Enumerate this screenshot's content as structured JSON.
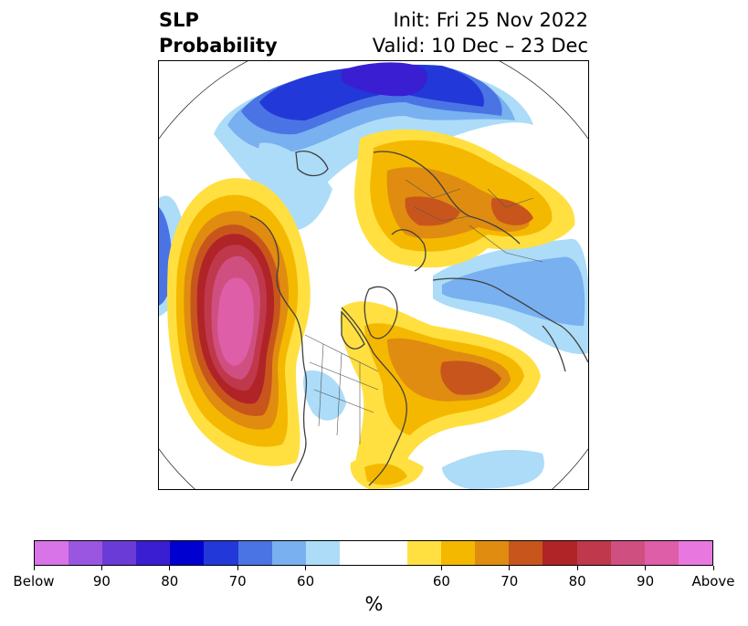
{
  "title": {
    "left_line1": "SLP",
    "left_line2": "Probability",
    "right_line1": "Init: Fri 25 Nov 2022",
    "right_line2": "Valid: 10 Dec – 23 Dec"
  },
  "colorbar": {
    "colors": [
      "#d873e8",
      "#9a56e0",
      "#6b3bd8",
      "#3a1ed2",
      "#0000d0",
      "#2238d8",
      "#4a74e4",
      "#78b0f0",
      "#acdcf8",
      "#ffffff",
      "#ffffff",
      "#ffe040",
      "#f5b800",
      "#e08c10",
      "#c8561c",
      "#b02428",
      "#c0384c",
      "#cf5080",
      "#de5ea8",
      "#e878e0"
    ],
    "tick_labels": [
      "Below",
      "90",
      "80",
      "70",
      "60",
      "60",
      "70",
      "80",
      "90",
      "Above"
    ],
    "unit": "%"
  },
  "map": {
    "projection": "north-polar-stereographic",
    "palette": {
      "blue_light": "#acdcf8",
      "blue_2": "#78b0f0",
      "blue_3": "#4a74e4",
      "blue_4": "#2238d8",
      "blue_5": "#0000d0",
      "blue_6": "#3a1ed2",
      "yellow": "#ffe040",
      "gold": "#f5b800",
      "orange": "#e08c10",
      "rust": "#c8561c",
      "red": "#b02428",
      "crimson": "#c0384c",
      "rose": "#cf5080",
      "pink": "#de5ea8"
    }
  }
}
